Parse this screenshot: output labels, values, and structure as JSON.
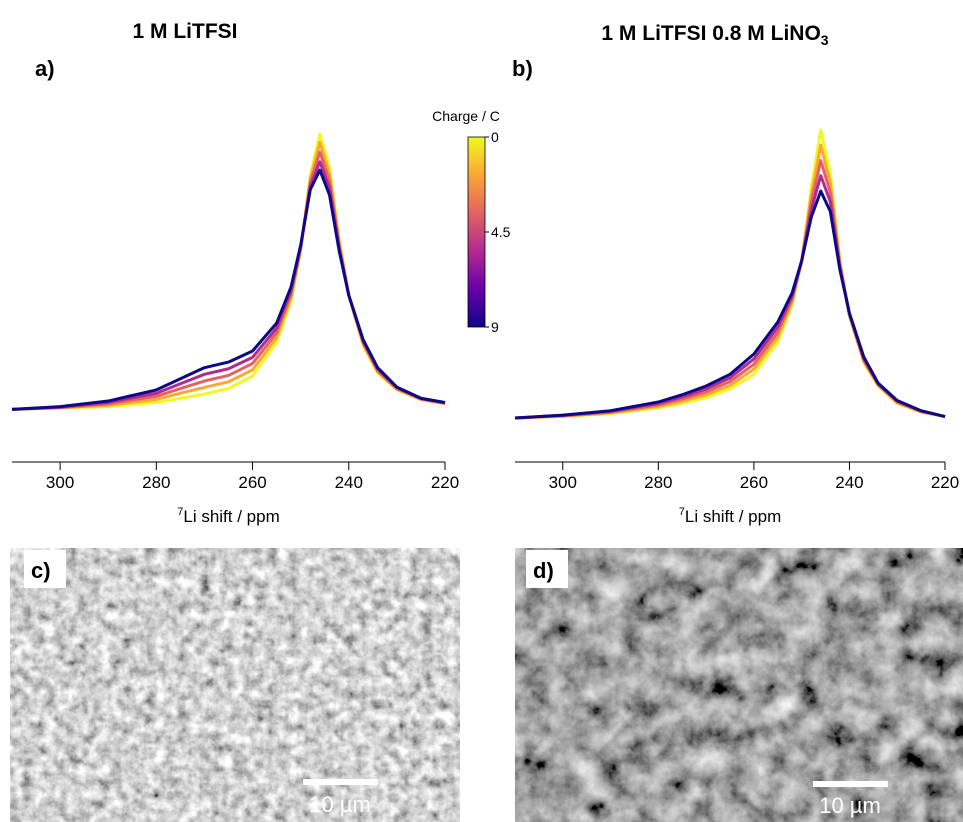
{
  "chart_data": [
    {
      "type": "line",
      "title": "1 M LiTFSI",
      "panel_label": "a)",
      "x_label_sup": "7",
      "x_label": "Li shift / ppm",
      "xlim": [
        310,
        220
      ],
      "xticks": [
        300,
        280,
        260,
        240,
        220
      ],
      "ylim": [
        -0.1,
        1.05
      ],
      "x": [
        310,
        300,
        290,
        280,
        275,
        270,
        265,
        260,
        255,
        252,
        250,
        248,
        246,
        244,
        242,
        240,
        237,
        234,
        230,
        225,
        220
      ],
      "series": [
        {
          "color": "#f0f921",
          "values": [
            0.01,
            0.015,
            0.02,
            0.035,
            0.05,
            0.065,
            0.085,
            0.13,
            0.25,
            0.4,
            0.58,
            0.85,
            1.0,
            0.88,
            0.62,
            0.42,
            0.24,
            0.14,
            0.08,
            0.045,
            0.03
          ]
        },
        {
          "color": "#fca636",
          "values": [
            0.01,
            0.016,
            0.025,
            0.046,
            0.068,
            0.089,
            0.109,
            0.152,
            0.268,
            0.412,
            0.585,
            0.838,
            0.97,
            0.855,
            0.61,
            0.42,
            0.245,
            0.145,
            0.083,
            0.046,
            0.031
          ]
        },
        {
          "color": "#e16462",
          "values": [
            0.01,
            0.017,
            0.03,
            0.057,
            0.085,
            0.112,
            0.132,
            0.175,
            0.285,
            0.425,
            0.59,
            0.825,
            0.935,
            0.83,
            0.6,
            0.42,
            0.25,
            0.15,
            0.085,
            0.048,
            0.032
          ]
        },
        {
          "color": "#b12a90",
          "values": [
            0.01,
            0.018,
            0.035,
            0.068,
            0.102,
            0.136,
            0.156,
            0.197,
            0.302,
            0.438,
            0.595,
            0.812,
            0.9,
            0.805,
            0.59,
            0.42,
            0.255,
            0.155,
            0.088,
            0.049,
            0.034
          ]
        },
        {
          "color": "#0d0887",
          "values": [
            0.01,
            0.02,
            0.04,
            0.08,
            0.12,
            0.16,
            0.18,
            0.22,
            0.32,
            0.45,
            0.6,
            0.8,
            0.87,
            0.78,
            0.58,
            0.42,
            0.26,
            0.16,
            0.09,
            0.05,
            0.035
          ]
        }
      ],
      "colorbar": {
        "label": "Charge / C",
        "lim": [
          0,
          9
        ],
        "ticks": [
          0,
          4.5,
          9
        ],
        "colors": [
          "#f0f921",
          "#fca636",
          "#e16462",
          "#b12a90",
          "#6a00a8",
          "#0d0887"
        ]
      }
    },
    {
      "type": "line",
      "title": "1 M LiTFSI 0.8 M LiNO",
      "title_sub": "3",
      "panel_label": "b)",
      "x_label_sup": "7",
      "x_label": "Li shift / ppm",
      "xlim": [
        310,
        220
      ],
      "xticks": [
        300,
        280,
        260,
        240,
        220
      ],
      "ylim": [
        -0.1,
        1.0
      ],
      "x": [
        310,
        300,
        290,
        280,
        275,
        270,
        265,
        260,
        255,
        252,
        250,
        248,
        246,
        244,
        242,
        240,
        237,
        234,
        230,
        225,
        220
      ],
      "series": [
        {
          "color": "#f0f921",
          "values": [
            0.01,
            0.015,
            0.025,
            0.045,
            0.06,
            0.08,
            0.11,
            0.16,
            0.27,
            0.4,
            0.55,
            0.8,
            1.0,
            0.85,
            0.55,
            0.36,
            0.2,
            0.12,
            0.06,
            0.03,
            0.015
          ]
        },
        {
          "color": "#fca636",
          "values": [
            0.01,
            0.016,
            0.028,
            0.05,
            0.068,
            0.09,
            0.122,
            0.178,
            0.288,
            0.41,
            0.55,
            0.775,
            0.948,
            0.818,
            0.543,
            0.363,
            0.205,
            0.123,
            0.063,
            0.031,
            0.015
          ]
        },
        {
          "color": "#e16462",
          "values": [
            0.01,
            0.018,
            0.03,
            0.055,
            0.075,
            0.1,
            0.135,
            0.195,
            0.305,
            0.42,
            0.55,
            0.75,
            0.895,
            0.785,
            0.535,
            0.365,
            0.21,
            0.125,
            0.065,
            0.033,
            0.015
          ]
        },
        {
          "color": "#b12a90",
          "values": [
            0.01,
            0.019,
            0.033,
            0.06,
            0.083,
            0.11,
            0.148,
            0.213,
            0.323,
            0.43,
            0.55,
            0.725,
            0.843,
            0.753,
            0.528,
            0.368,
            0.215,
            0.128,
            0.068,
            0.034,
            0.015
          ]
        },
        {
          "color": "#0d0887",
          "values": [
            0.01,
            0.02,
            0.035,
            0.065,
            0.09,
            0.12,
            0.16,
            0.23,
            0.34,
            0.44,
            0.55,
            0.7,
            0.79,
            0.72,
            0.52,
            0.37,
            0.22,
            0.13,
            0.07,
            0.035,
            0.015
          ]
        }
      ]
    }
  ],
  "images": [
    {
      "label": "c)",
      "scale_bar": "10 µm"
    },
    {
      "label": "d)",
      "scale_bar": "10 µm"
    }
  ]
}
